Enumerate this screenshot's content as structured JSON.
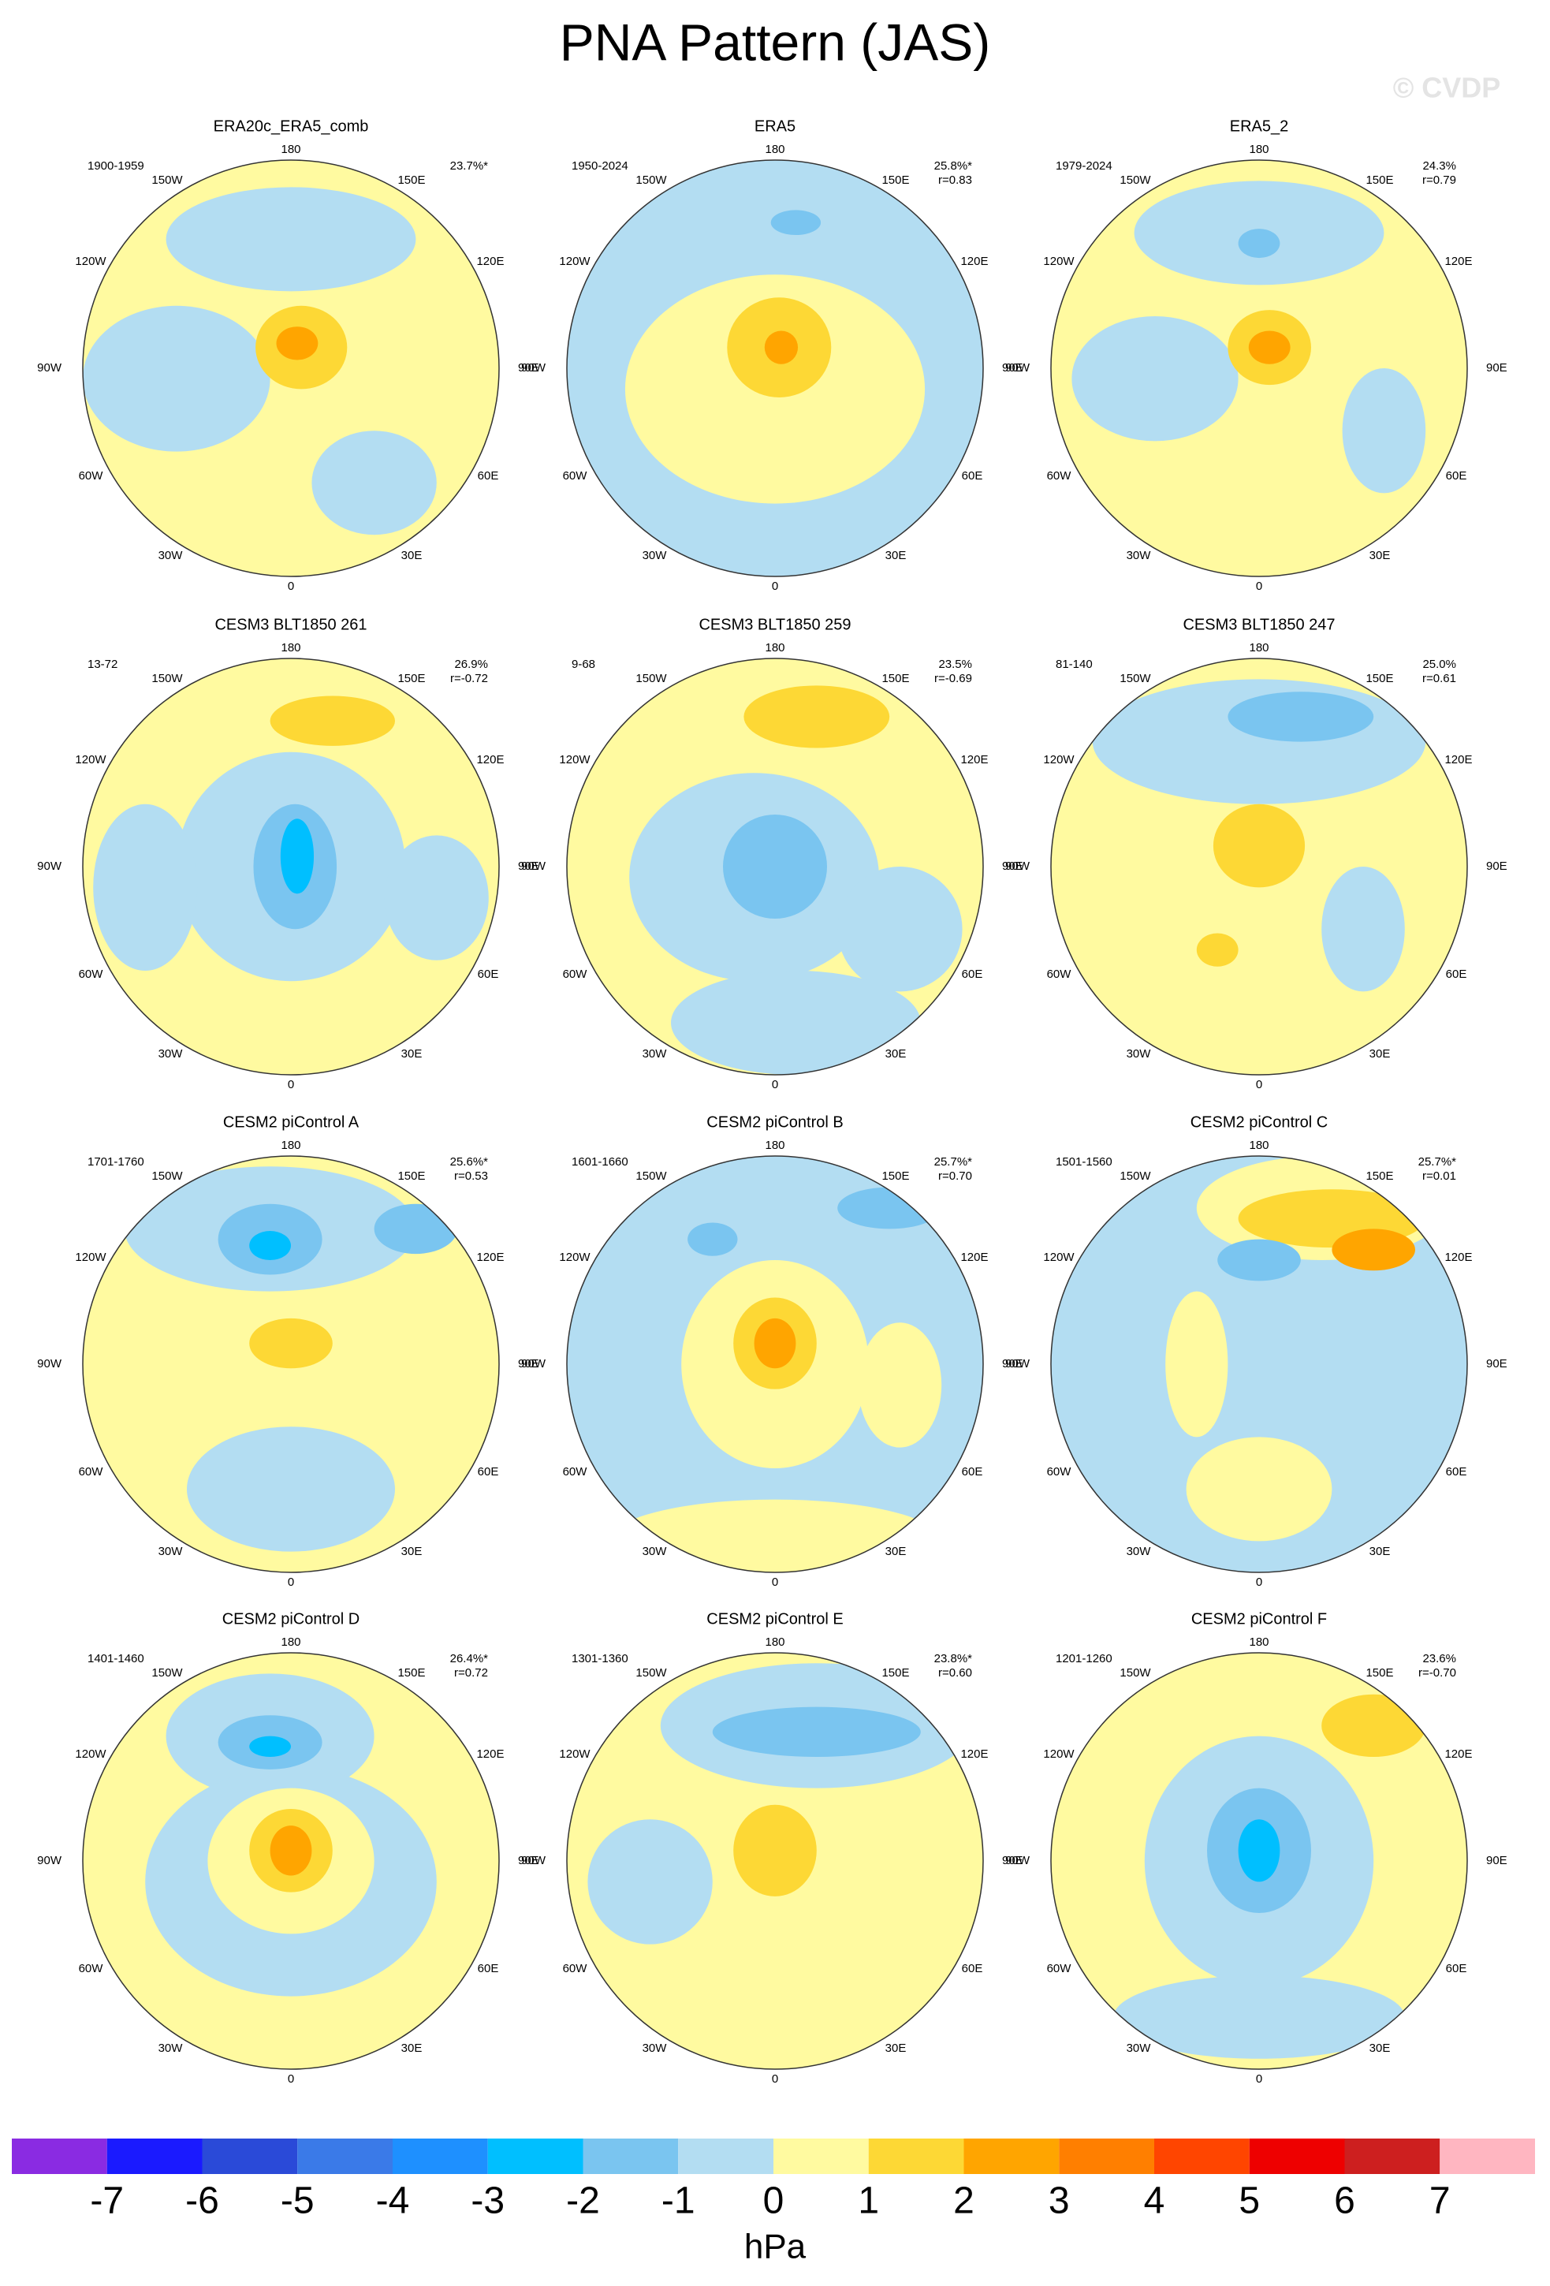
{
  "title": "PNA Pattern (JAS)",
  "watermark": "© CVDP",
  "lon_labels": {
    "top": "180",
    "bottom": "0",
    "w150": "150W",
    "e150": "150E",
    "w120": "120W",
    "e120": "120E",
    "w90": "90W",
    "e90": "90E",
    "w60": "60W",
    "e60": "60E",
    "w30": "30W",
    "e30": "30E"
  },
  "panels": [
    {
      "title": "ERA20c_ERA5_comb",
      "period": "1900-1959",
      "pct": "23.7%*"
    },
    {
      "title": "ERA5",
      "period": "1950-2024",
      "pct": "25.8%*",
      "r": "r=0.83"
    },
    {
      "title": "ERA5_2",
      "period": "1979-2024",
      "pct": "24.3%",
      "r": "r=0.79"
    },
    {
      "title": "CESM3 BLT1850 261",
      "period": "13-72",
      "pct": "26.9%",
      "r": "r=-0.72"
    },
    {
      "title": "CESM3 BLT1850 259",
      "period": "9-68",
      "pct": "23.5%",
      "r": "r=-0.69"
    },
    {
      "title": "CESM3 BLT1850 247",
      "period": "81-140",
      "pct": "25.0%",
      "r": "r=0.61"
    },
    {
      "title": "CESM2 piControl A",
      "period": "1701-1760",
      "pct": "25.6%*",
      "r": "r=0.53"
    },
    {
      "title": "CESM2 piControl B",
      "period": "1601-1660",
      "pct": "25.7%*",
      "r": "r=0.70"
    },
    {
      "title": "CESM2 piControl C",
      "period": "1501-1560",
      "pct": "25.7%*",
      "r": "r=0.01"
    },
    {
      "title": "CESM2 piControl D",
      "period": "1401-1460",
      "pct": "26.4%*",
      "r": "r=0.72"
    },
    {
      "title": "CESM2 piControl E",
      "period": "1301-1360",
      "pct": "23.8%*",
      "r": "r=0.60"
    },
    {
      "title": "CESM2 piControl F",
      "period": "1201-1260",
      "pct": "23.6%",
      "r": "r=-0.70"
    }
  ],
  "colorbar": {
    "ticks": [
      -7,
      -6,
      -5,
      -4,
      -3,
      -2,
      -1,
      0,
      1,
      2,
      3,
      4,
      5,
      6,
      7
    ],
    "colors": [
      "#8a2be2",
      "#1a1aff",
      "#2a4ad8",
      "#3a7ae8",
      "#1e90ff",
      "#00bfff",
      "#7ac5f0",
      "#b3ddf2",
      "#fffaa0",
      "#fdd835",
      "#ffa500",
      "#ff7f00",
      "#ff4500",
      "#ee0000",
      "#cd1f1f",
      "#ffb6c1"
    ],
    "unit": "hPa"
  }
}
